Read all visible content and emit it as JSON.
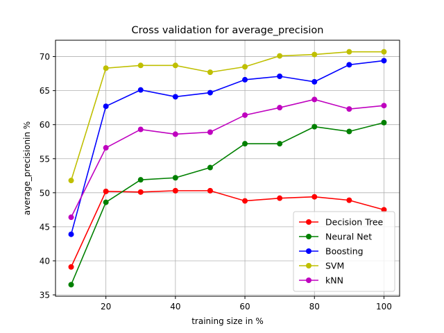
{
  "chart_data": {
    "type": "line",
    "title": "Cross validation for average_precision",
    "xlabel": "training size in %",
    "ylabel": "average_precisionin %",
    "x": [
      10,
      20,
      30,
      40,
      50,
      60,
      70,
      80,
      90,
      100
    ],
    "xlim": [
      5.5,
      104.5
    ],
    "ylim": [
      34.8,
      72.4
    ],
    "xticks": [
      20,
      40,
      60,
      80,
      100
    ],
    "yticks": [
      35,
      40,
      45,
      50,
      55,
      60,
      65,
      70
    ],
    "grid": true,
    "legend_position": "lower-right",
    "series": [
      {
        "name": "Decision Tree",
        "color": "#ff0000",
        "values": [
          39.1,
          50.2,
          50.1,
          50.3,
          50.3,
          48.8,
          49.2,
          49.4,
          48.9,
          47.5
        ]
      },
      {
        "name": "Neural Net",
        "color": "#008000",
        "values": [
          36.5,
          48.6,
          51.9,
          52.2,
          53.7,
          57.2,
          57.2,
          59.7,
          59.0,
          60.3
        ]
      },
      {
        "name": "Boosting",
        "color": "#0000ff",
        "values": [
          43.9,
          62.7,
          65.1,
          64.1,
          64.7,
          66.6,
          67.1,
          66.3,
          68.8,
          69.4
        ]
      },
      {
        "name": "SVM",
        "color": "#bfbf00",
        "values": [
          51.8,
          68.3,
          68.7,
          68.7,
          67.7,
          68.5,
          70.1,
          70.3,
          70.7,
          70.7
        ]
      },
      {
        "name": "kNN",
        "color": "#bf00bf",
        "values": [
          46.4,
          56.6,
          59.3,
          58.6,
          58.9,
          61.4,
          62.5,
          63.7,
          62.3,
          62.8
        ]
      }
    ]
  }
}
